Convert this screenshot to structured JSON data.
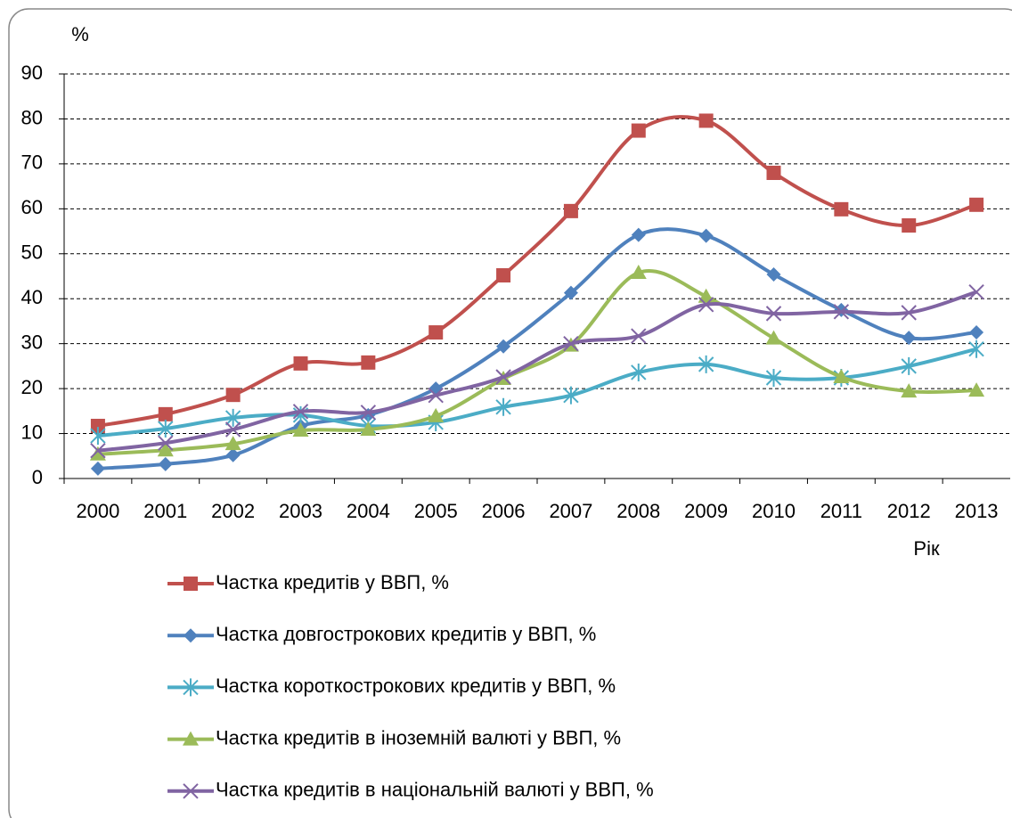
{
  "chart_data": {
    "type": "line",
    "y_label": "%",
    "x_label": "Рік",
    "categories": [
      "2000",
      "2001",
      "2002",
      "2003",
      "2004",
      "2005",
      "2006",
      "2007",
      "2008",
      "2009",
      "2010",
      "2011",
      "2012",
      "2013"
    ],
    "ylim": [
      0,
      90
    ],
    "yticks": [
      0,
      10,
      20,
      30,
      40,
      50,
      60,
      70,
      80,
      90
    ],
    "grid": true,
    "smooth": true,
    "legend": "bottom",
    "series": [
      {
        "name": "Частка кредитів у ВВП, %",
        "color": "#c0504d",
        "marker": "square",
        "values": [
          11.7,
          14.3,
          18.6,
          25.6,
          25.8,
          32.5,
          45.2,
          59.5,
          77.4,
          79.6,
          68,
          59.9,
          56.3,
          60.9
        ]
      },
      {
        "name": "Частка довгострокових кредитів у ВВП, %",
        "color": "#4f81bd",
        "marker": "diamond",
        "values": [
          2.2,
          3.2,
          5.2,
          11.7,
          14.1,
          20,
          29.4,
          41.3,
          54.2,
          54,
          45.4,
          37.5,
          31.3,
          32.5
        ]
      },
      {
        "name": "Частка короткострокових кредитів у ВВП, %",
        "color": "#4bacc6",
        "marker": "asterisk",
        "values": [
          9.5,
          11.1,
          13.5,
          14.1,
          11.7,
          12.5,
          15.9,
          18.5,
          23.6,
          25.4,
          22.4,
          22.4,
          25,
          28.8
        ]
      },
      {
        "name": "Частка кредитів в іноземній валюті у ВВП, %",
        "color": "#9bbb59",
        "marker": "triangle",
        "values": [
          5.4,
          6.3,
          7.7,
          10.7,
          10.9,
          13.9,
          22.2,
          29.6,
          45.8,
          40.5,
          31.2,
          22.6,
          19.4,
          19.6
        ]
      },
      {
        "name": "Частка кредитів в національній валюті у ВВП, %",
        "color": "#8064a2",
        "marker": "x",
        "values": [
          6.2,
          7.9,
          10.9,
          14.9,
          14.7,
          18.5,
          22.6,
          30,
          31.7,
          38.7,
          36.7,
          37.1,
          36.9,
          41.5
        ]
      }
    ]
  }
}
